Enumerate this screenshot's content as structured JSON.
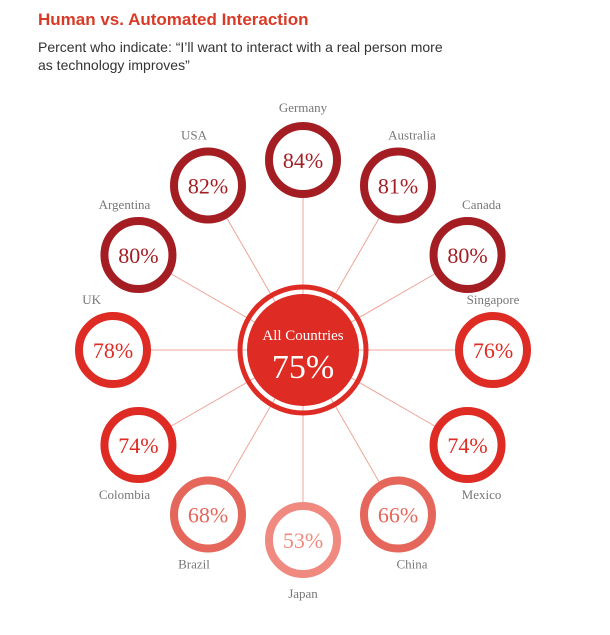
{
  "header": {
    "title": "Human vs. Automated Interaction",
    "subtitle": "Percent who indicate: “I’ll want to interact with a real person more as technology improves”"
  },
  "colors": {
    "dark_red": "#a31d23",
    "red": "#de2b24",
    "salmon": "#e5665a",
    "pink": "#f08a80",
    "line": "#f0a498",
    "label_gray": "#777777"
  },
  "chart_data": {
    "type": "radial-bubble",
    "title": "Human vs. Automated Interaction",
    "subtitle": "Percent who indicate: “I’ll want to interact with a real person more as technology improves”",
    "center": {
      "name": "All Countries",
      "value": 75
    },
    "unit": "%",
    "countries": [
      {
        "name": "Germany",
        "value": 84
      },
      {
        "name": "Australia",
        "value": 81
      },
      {
        "name": "Canada",
        "value": 80
      },
      {
        "name": "Singapore",
        "value": 76
      },
      {
        "name": "Mexico",
        "value": 74
      },
      {
        "name": "China",
        "value": 66
      },
      {
        "name": "Japan",
        "value": 53
      },
      {
        "name": "Brazil",
        "value": 68
      },
      {
        "name": "Colombia",
        "value": 74
      },
      {
        "name": "UK",
        "value": 78
      },
      {
        "name": "Argentina",
        "value": 80
      },
      {
        "name": "USA",
        "value": 82
      }
    ]
  }
}
